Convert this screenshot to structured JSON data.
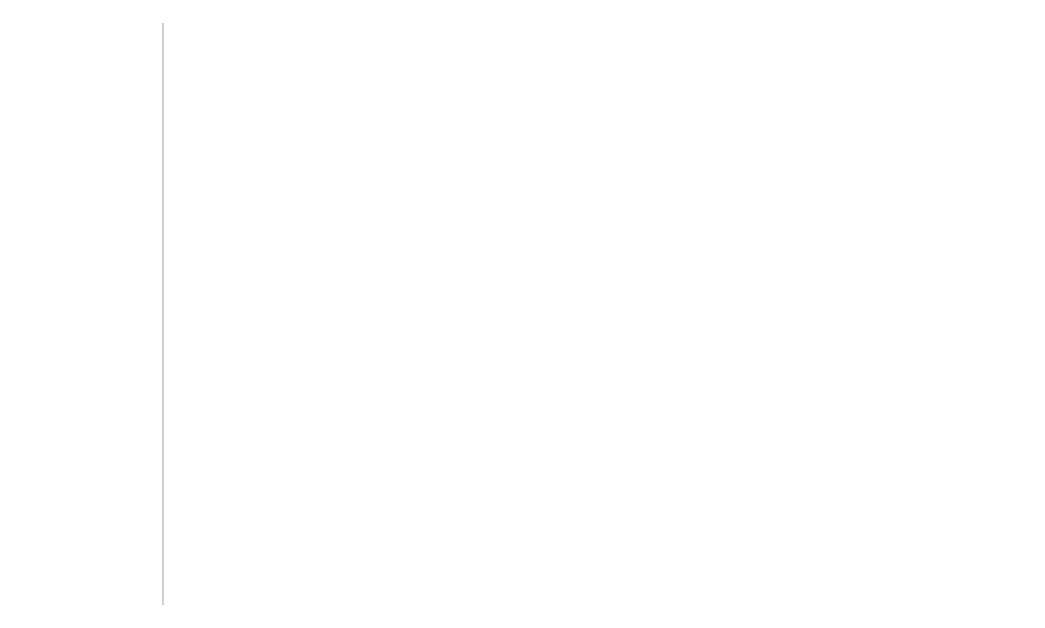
{
  "colors": {
    "background": "#ffffff",
    "divider": "#d0d0d0"
  }
}
